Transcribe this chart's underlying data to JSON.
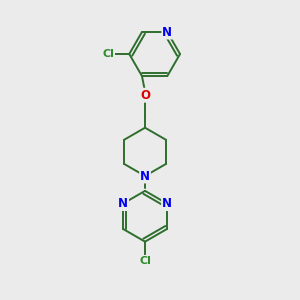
{
  "bg_color": "#ebebeb",
  "bond_color": "#2d6e2d",
  "N_color": "#0000ee",
  "O_color": "#dd0000",
  "Cl_color": "#2d8c2d",
  "line_width": 1.4,
  "font_size": 8.5,
  "fig_w": 3.0,
  "fig_h": 3.0,
  "dpi": 100,
  "xlim": [
    0.15,
    0.85
  ],
  "ylim": [
    0.02,
    0.98
  ]
}
